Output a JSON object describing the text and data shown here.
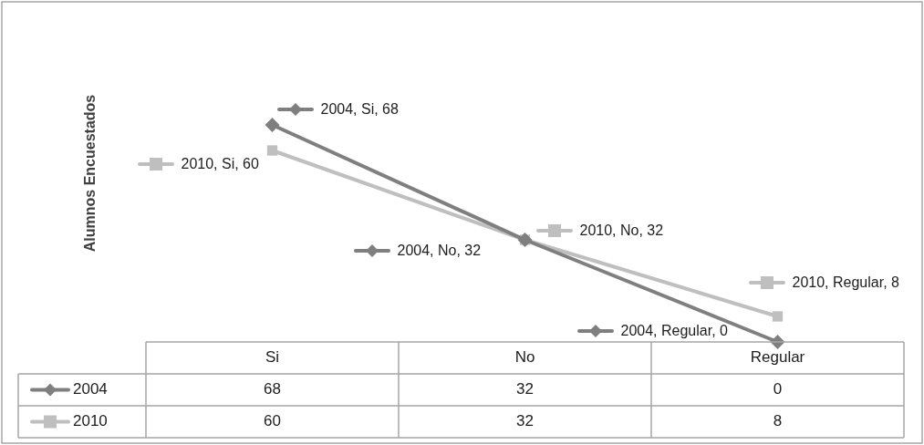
{
  "chart_data": {
    "type": "line",
    "ylabel": "Alumnos Encuestados",
    "categories": [
      "Si",
      "No",
      "Regular"
    ],
    "series": [
      {
        "name": "2004",
        "color": "#7f7f7f",
        "marker": "diamond",
        "values": [
          68,
          32,
          0
        ]
      },
      {
        "name": "2010",
        "color": "#bfbfbf",
        "marker": "square",
        "values": [
          60,
          32,
          8
        ]
      }
    ],
    "annotations": [
      "2004, Si, 68",
      "2004, No, 32",
      "2004, Regular, 0",
      "2010, Si, 60",
      "2010, No, 32",
      "2010, Regular, 8"
    ],
    "data_labels": true,
    "legend": "bottom left",
    "grid": false
  }
}
